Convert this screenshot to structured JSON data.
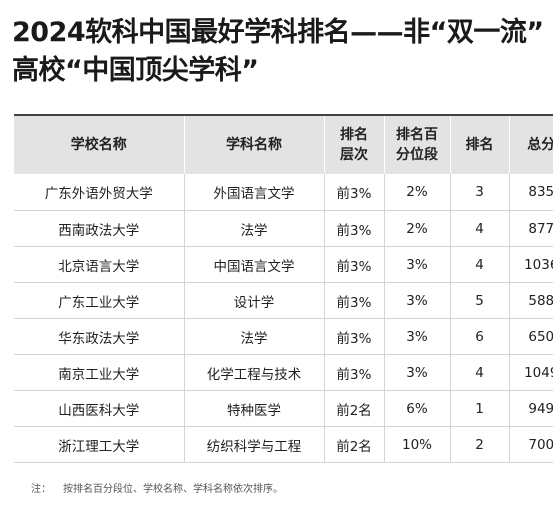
{
  "title": {
    "line1": "2024软科中国最好学科排名——非“双一流”",
    "line2": "高校“中国顶尖学科”"
  },
  "table": {
    "headers": [
      {
        "line1": "学校名称",
        "line2": ""
      },
      {
        "line1": "学科名称",
        "line2": ""
      },
      {
        "line1": "排名",
        "line2": "层次"
      },
      {
        "line1": "排名百",
        "line2": "分位段"
      },
      {
        "line1": "排名",
        "line2": ""
      },
      {
        "line1": "总分",
        "line2": ""
      }
    ],
    "rows": [
      [
        "广东外语外贸大学",
        "外国语言文学",
        "前3%",
        "2%",
        "3",
        "835"
      ],
      [
        "西南政法大学",
        "法学",
        "前3%",
        "2%",
        "4",
        "877"
      ],
      [
        "北京语言大学",
        "中国语言文学",
        "前3%",
        "3%",
        "4",
        "1036"
      ],
      [
        "广东工业大学",
        "设计学",
        "前3%",
        "3%",
        "5",
        "588"
      ],
      [
        "华东政法大学",
        "法学",
        "前3%",
        "3%",
        "6",
        "650"
      ],
      [
        "南京工业大学",
        "化学工程与技术",
        "前3%",
        "3%",
        "4",
        "1049"
      ],
      [
        "山西医科大学",
        "特种医学",
        "前2名",
        "6%",
        "1",
        "949"
      ],
      [
        "浙江理工大学",
        "纺织科学与工程",
        "前2名",
        "10%",
        "2",
        "700"
      ]
    ]
  },
  "note": {
    "label": "注：",
    "text": "按排名百分段位、学校名称、学科名称依次排序。"
  }
}
